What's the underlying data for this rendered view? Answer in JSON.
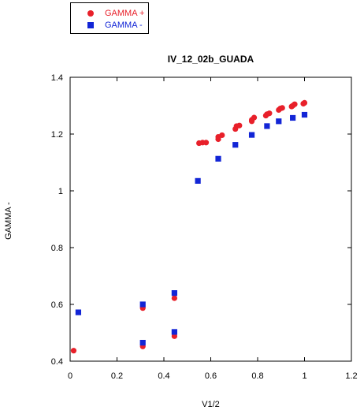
{
  "chart_data": {
    "type": "scatter",
    "title": "IV_12_02b_GUADA",
    "xlabel": "V1/2",
    "ylabel": "GAMMA -",
    "xlim": [
      0,
      1.2
    ],
    "ylim": [
      0.4,
      1.4
    ],
    "x_ticks": [
      "0",
      "0.2",
      "0.4",
      "0.6",
      "0.8",
      "1",
      "1.2"
    ],
    "y_ticks": [
      "0.4",
      "0.6",
      "0.8",
      "1",
      "1.2",
      "1.4"
    ],
    "legend_position": "top-left, outside plot",
    "grid": false,
    "series": [
      {
        "name": "GAMMA +",
        "color": "#e8202a",
        "marker": "circle",
        "points": [
          [
            0.015,
            0.437
          ],
          [
            0.31,
            0.587
          ],
          [
            0.31,
            0.452
          ],
          [
            0.445,
            0.622
          ],
          [
            0.445,
            0.488
          ],
          [
            0.55,
            1.168
          ],
          [
            0.565,
            1.17
          ],
          [
            0.58,
            1.17
          ],
          [
            0.632,
            1.182
          ],
          [
            0.632,
            1.19
          ],
          [
            0.648,
            1.196
          ],
          [
            0.705,
            1.218
          ],
          [
            0.71,
            1.228
          ],
          [
            0.722,
            1.23
          ],
          [
            0.775,
            1.245
          ],
          [
            0.775,
            1.25
          ],
          [
            0.785,
            1.258
          ],
          [
            0.835,
            1.265
          ],
          [
            0.84,
            1.27
          ],
          [
            0.85,
            1.273
          ],
          [
            0.89,
            1.285
          ],
          [
            0.897,
            1.29
          ],
          [
            0.905,
            1.292
          ],
          [
            0.945,
            1.297
          ],
          [
            0.95,
            1.3
          ],
          [
            0.958,
            1.305
          ],
          [
            0.995,
            1.307
          ],
          [
            1.0,
            1.31
          ]
        ]
      },
      {
        "name": "GAMMA -",
        "color": "#1225d6",
        "marker": "square",
        "points": [
          [
            0.035,
            0.572
          ],
          [
            0.31,
            0.6
          ],
          [
            0.31,
            0.465
          ],
          [
            0.445,
            0.64
          ],
          [
            0.445,
            0.503
          ],
          [
            0.545,
            1.035
          ],
          [
            0.632,
            1.113
          ],
          [
            0.705,
            1.162
          ],
          [
            0.775,
            1.197
          ],
          [
            0.84,
            1.228
          ],
          [
            0.89,
            1.245
          ],
          [
            0.95,
            1.257
          ],
          [
            1.0,
            1.268
          ]
        ]
      }
    ]
  }
}
